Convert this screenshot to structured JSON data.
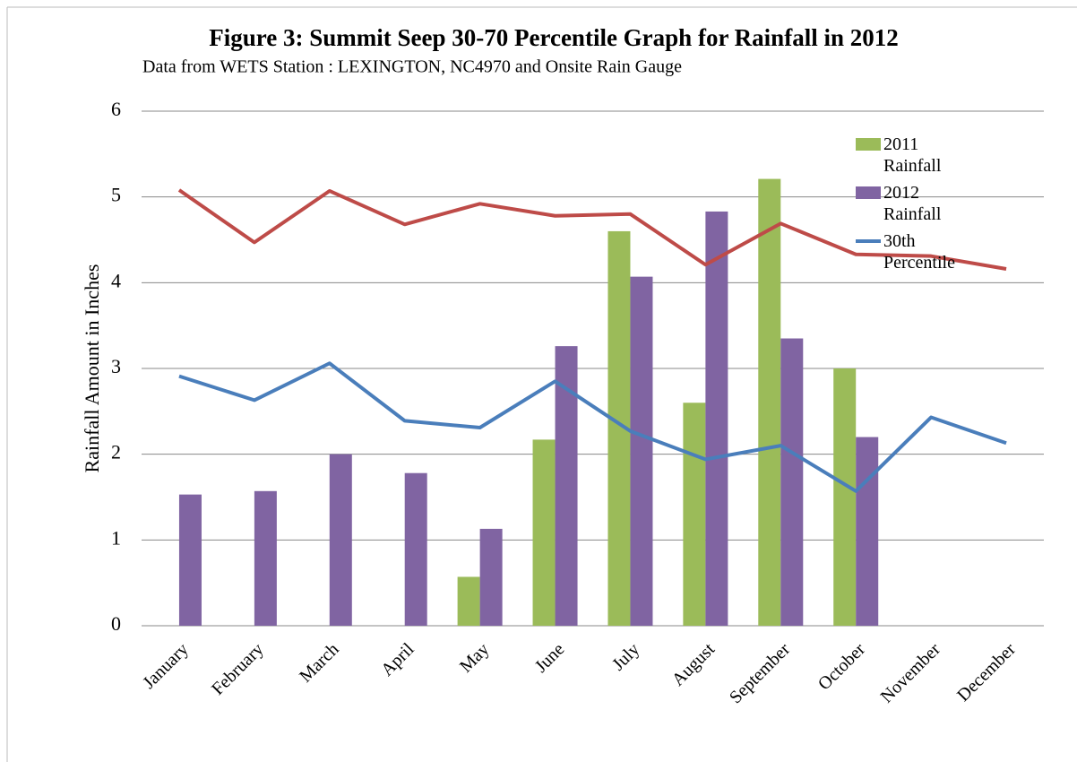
{
  "chart_data": {
    "type": "bar",
    "title": "Figure 3: Summit Seep 30-70 Percentile Graph for Rainfall in 2012",
    "subtitle": "Data from WETS Station : LEXINGTON, NC4970 and Onsite Rain Gauge",
    "y_label": "Rainfall Amount in Inches",
    "categories": [
      "January",
      "February",
      "March",
      "April",
      "May",
      "June",
      "July",
      "August",
      "September",
      "October",
      "November",
      "December"
    ],
    "series": [
      {
        "name": "2011 Rainfall",
        "type": "bar",
        "color": "#9bbb59",
        "values": [
          null,
          null,
          null,
          null,
          0.57,
          2.17,
          4.6,
          2.6,
          5.21,
          3.0,
          null,
          null
        ]
      },
      {
        "name": "2012 Rainfall",
        "type": "bar",
        "color": "#8064a2",
        "values": [
          1.53,
          1.57,
          2.0,
          1.78,
          1.13,
          3.26,
          4.07,
          4.83,
          3.35,
          2.2,
          null,
          null
        ]
      },
      {
        "name": "30th Percentile",
        "type": "line",
        "color": "#4a7ebb",
        "values": [
          2.91,
          2.63,
          3.06,
          2.39,
          2.31,
          2.85,
          2.27,
          1.94,
          2.1,
          1.57,
          2.43,
          2.13
        ]
      },
      {
        "type": "line",
        "color": "#be4b48",
        "values": [
          5.08,
          4.47,
          5.07,
          4.68,
          4.92,
          4.78,
          4.8,
          4.21,
          4.69,
          4.33,
          4.31,
          4.16
        ]
      }
    ],
    "ylim": [
      0,
      6
    ],
    "yticks": [
      0,
      1,
      2,
      3,
      4,
      5,
      6
    ],
    "grid": true,
    "legend": "top-right"
  }
}
